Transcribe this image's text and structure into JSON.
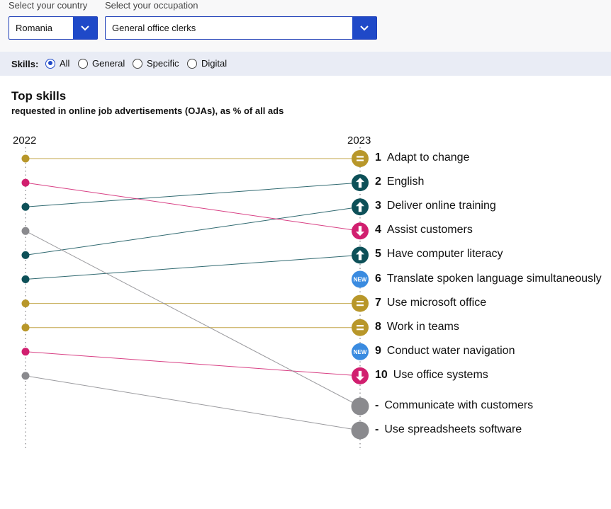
{
  "filters": {
    "country_label": "Select your country",
    "country_value": "Romania",
    "occupation_label": "Select your occupation",
    "occupation_value": "General office clerks"
  },
  "skills_filter": {
    "label": "Skills:",
    "options": [
      {
        "label": "All",
        "selected": true
      },
      {
        "label": "General",
        "selected": false
      },
      {
        "label": "Specific",
        "selected": false
      },
      {
        "label": "Digital",
        "selected": false
      }
    ]
  },
  "chart": {
    "title": "Top skills",
    "subtitle": "requested in online job advertisements (OJAs), as % of all ads",
    "year_left": "2022",
    "year_right": "2023"
  },
  "colors": {
    "same": "#b8972a",
    "up": "#0d5058",
    "down": "#d11f6f",
    "new": "#3a8be0",
    "dropped": "#8a8a8e",
    "accent": "#1f49c8"
  },
  "chart_data": {
    "type": "slope",
    "years": [
      "2022",
      "2023"
    ],
    "skills": [
      {
        "name": "Adapt to change",
        "rank_2023": "1",
        "rank_2022": 1,
        "status": "same"
      },
      {
        "name": "English",
        "rank_2023": "2",
        "rank_2022": 3,
        "status": "up"
      },
      {
        "name": "Deliver online training",
        "rank_2023": "3",
        "rank_2022": 5,
        "status": "up"
      },
      {
        "name": "Assist customers",
        "rank_2023": "4",
        "rank_2022": 2,
        "status": "down"
      },
      {
        "name": "Have computer literacy",
        "rank_2023": "5",
        "rank_2022": 6,
        "status": "up"
      },
      {
        "name": "Translate spoken language simultaneously",
        "rank_2023": "6",
        "rank_2022": null,
        "status": "new"
      },
      {
        "name": "Use microsoft office",
        "rank_2023": "7",
        "rank_2022": 7,
        "status": "same"
      },
      {
        "name": "Work in teams",
        "rank_2023": "8",
        "rank_2022": 8,
        "status": "same"
      },
      {
        "name": "Conduct water navigation",
        "rank_2023": "9",
        "rank_2022": null,
        "status": "new"
      },
      {
        "name": "Use office systems",
        "rank_2023": "10",
        "rank_2022": 9,
        "status": "down"
      },
      {
        "name": "Communicate with customers",
        "rank_2023": "-",
        "rank_2022": 4,
        "status": "dropped"
      },
      {
        "name": "Use spreadsheets software",
        "rank_2023": "-",
        "rank_2022": 10,
        "status": "dropped"
      }
    ],
    "badge_new": "NEW"
  }
}
